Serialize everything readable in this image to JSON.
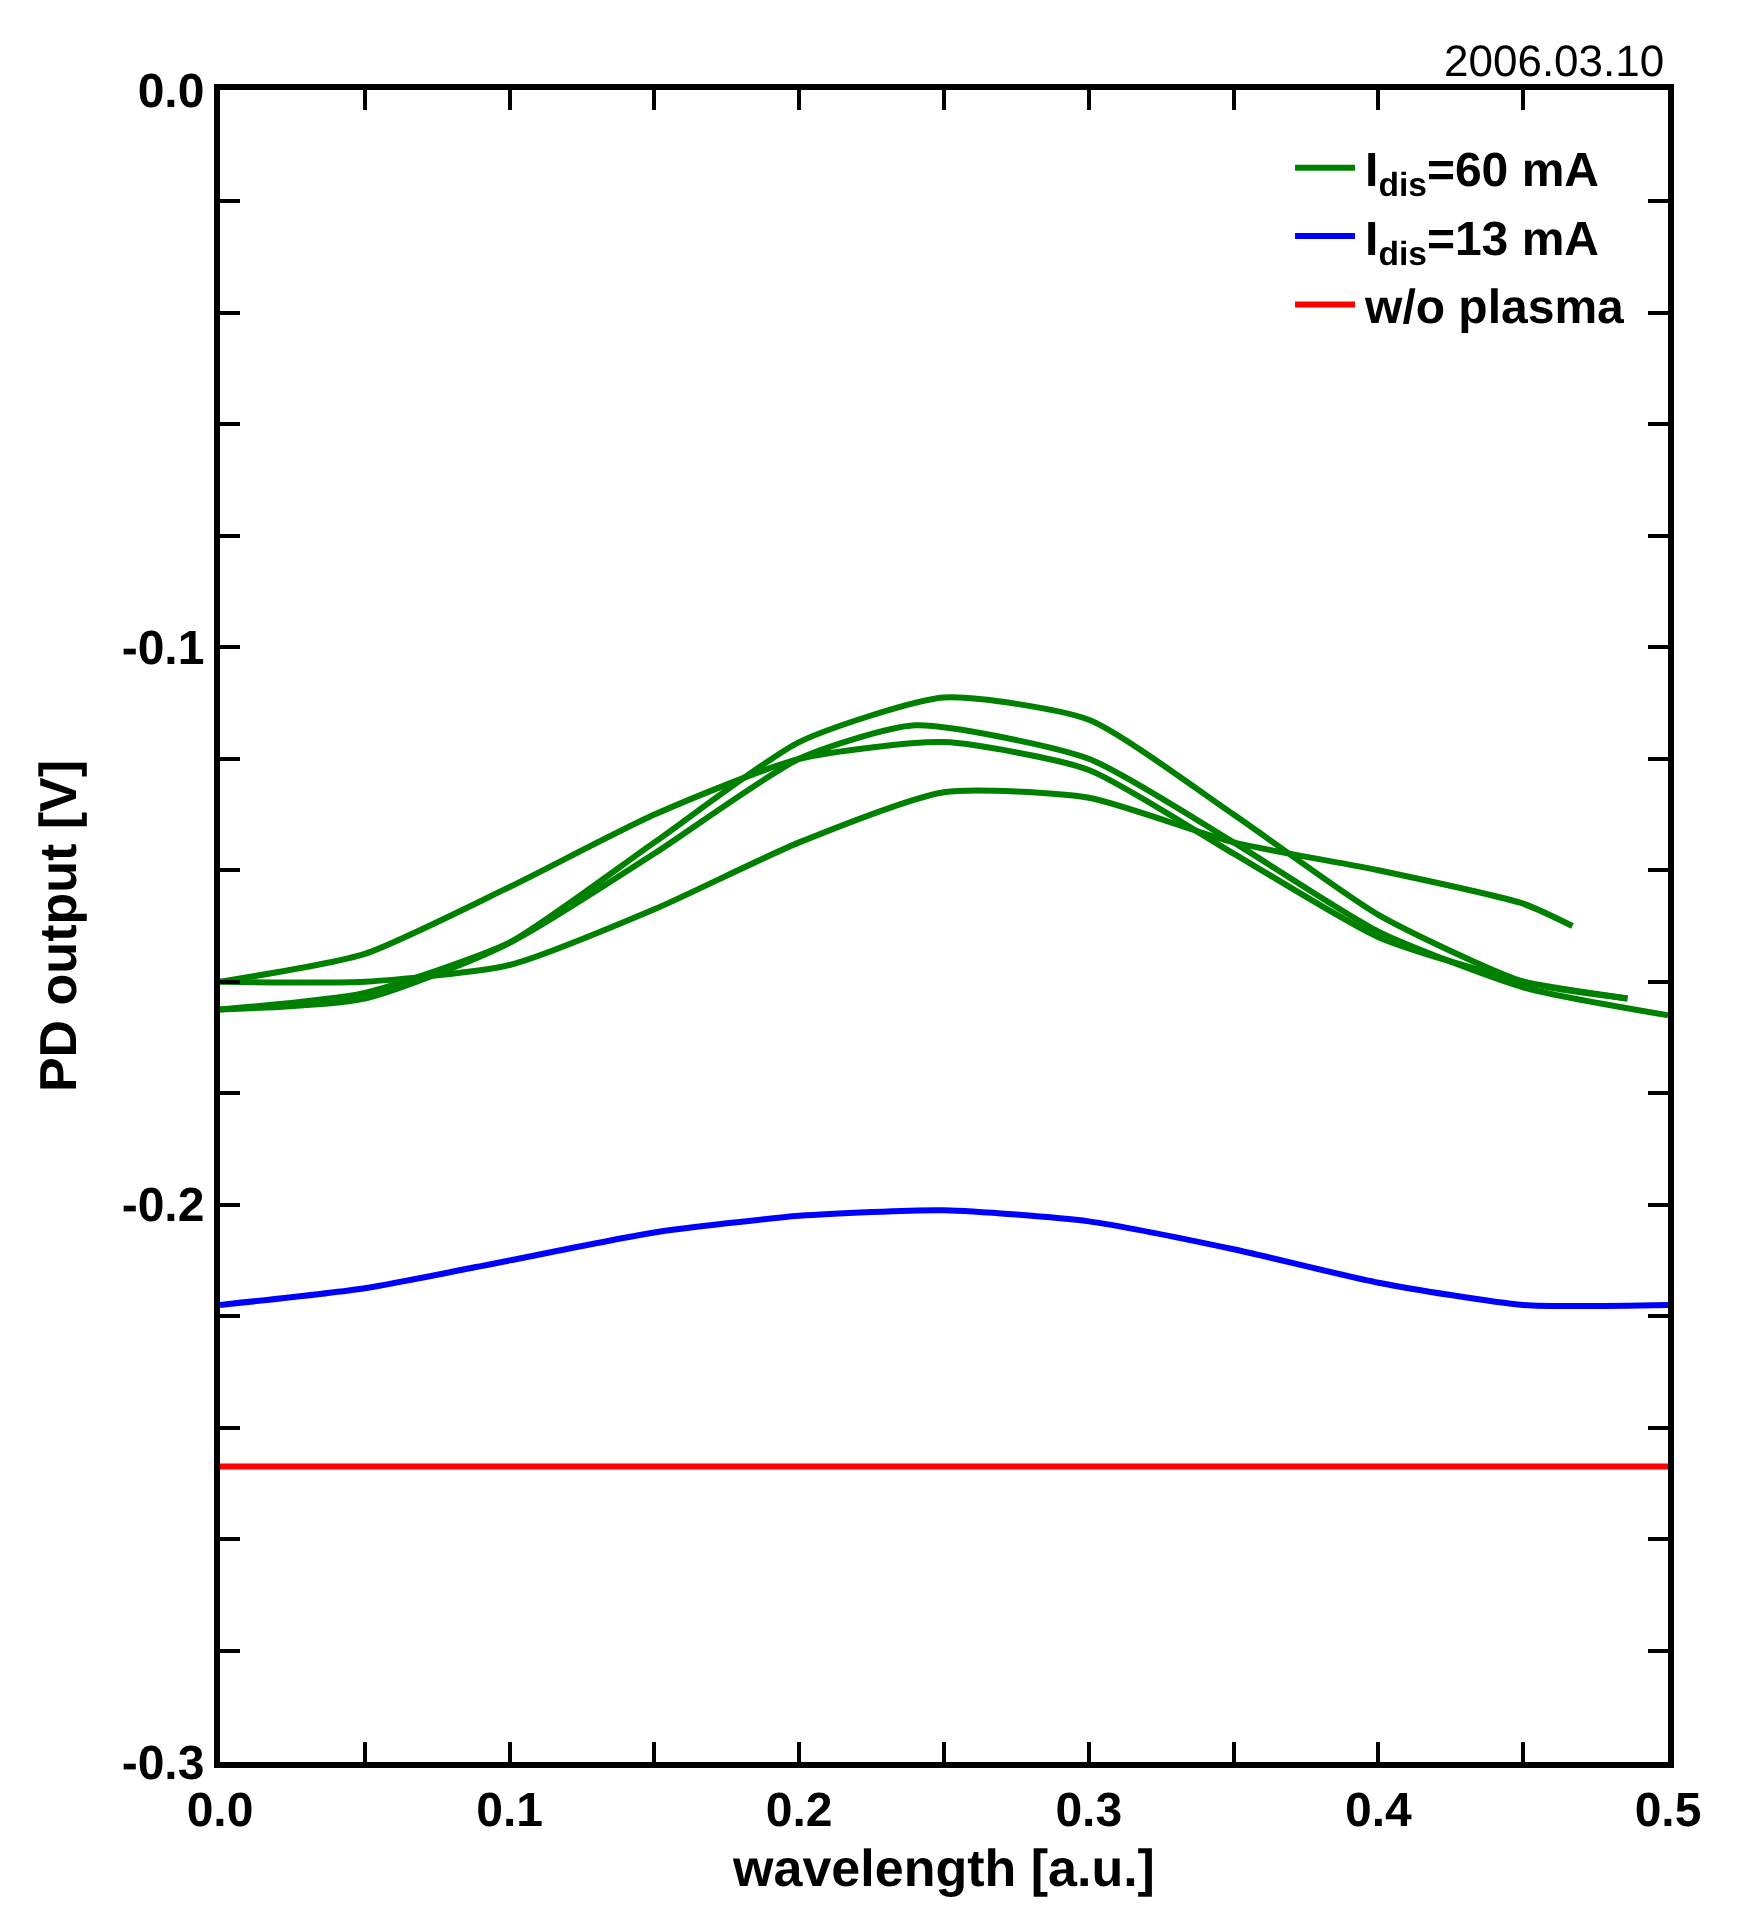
{
  "chart_data": {
    "type": "line",
    "xlabel": "wavelength [a.u.]",
    "ylabel": "PD output [V]",
    "xlim": [
      0,
      0.5
    ],
    "ylim": [
      -0.3,
      0
    ],
    "xticks": [
      {
        "value": 0,
        "label": "0.0"
      },
      {
        "value": 0.05,
        "label": null
      },
      {
        "value": 0.1,
        "label": "0.1"
      },
      {
        "value": 0.15,
        "label": null
      },
      {
        "value": 0.2,
        "label": "0.2"
      },
      {
        "value": 0.25,
        "label": null
      },
      {
        "value": 0.3,
        "label": "0.3"
      },
      {
        "value": 0.35,
        "label": null
      },
      {
        "value": 0.4,
        "label": "0.4"
      },
      {
        "value": 0.45,
        "label": null
      },
      {
        "value": 0.5,
        "label": "0.5"
      }
    ],
    "yticks": [
      {
        "value": 0,
        "label": "0.0"
      },
      {
        "value": -0.02,
        "label": null
      },
      {
        "value": -0.04,
        "label": null
      },
      {
        "value": -0.06,
        "label": null
      },
      {
        "value": -0.08,
        "label": null
      },
      {
        "value": -0.1,
        "label": "-0.1"
      },
      {
        "value": -0.12,
        "label": null
      },
      {
        "value": -0.14,
        "label": null
      },
      {
        "value": -0.16,
        "label": null
      },
      {
        "value": -0.18,
        "label": null
      },
      {
        "value": -0.2,
        "label": "-0.2"
      },
      {
        "value": -0.22,
        "label": null
      },
      {
        "value": -0.24,
        "label": null
      },
      {
        "value": -0.26,
        "label": null
      },
      {
        "value": -0.28,
        "label": null
      },
      {
        "value": -0.3,
        "label": "-0.3"
      }
    ],
    "legend": "top right",
    "marker": "none",
    "line_style": "solid",
    "annotations": [
      "2006.03.10"
    ],
    "series": [
      {
        "name": "I$_{dis}$=60 mA",
        "color": "#008000",
        "x": [
          0,
          0.05,
          0.1,
          0.15,
          0.2,
          0.25,
          0.3,
          0.35,
          0.4,
          0.45,
          0.486
        ],
        "values": [
          -0.16,
          -0.155,
          -0.143,
          -0.13,
          -0.12,
          -0.117,
          -0.122,
          -0.137,
          -0.152,
          -0.16,
          -0.163
        ]
      },
      {
        "color": "#008000",
        "x": [
          0,
          0.05,
          0.1,
          0.15,
          0.2,
          0.25,
          0.3,
          0.35,
          0.4,
          0.45,
          0.486
        ],
        "values": [
          -0.165,
          -0.163,
          -0.153,
          -0.135,
          -0.117,
          -0.109,
          -0.113,
          -0.13,
          -0.148,
          -0.16,
          -0.163
        ]
      },
      {
        "color": "#008000",
        "x": [
          0,
          0.05,
          0.1,
          0.15,
          0.2,
          0.24,
          0.3,
          0.35,
          0.4,
          0.45,
          0.5
        ],
        "values": [
          -0.165,
          -0.162,
          -0.153,
          -0.137,
          -0.12,
          -0.114,
          -0.12,
          -0.135,
          -0.151,
          -0.161,
          -0.166
        ]
      },
      {
        "color": "#008000",
        "x": [
          0,
          0.05,
          0.1,
          0.15,
          0.2,
          0.25,
          0.3,
          0.35,
          0.4,
          0.45,
          0.467
        ],
        "values": [
          -0.16,
          -0.16,
          -0.157,
          -0.147,
          -0.135,
          -0.126,
          -0.127,
          -0.135,
          -0.14,
          -0.146,
          -0.15
        ]
      },
      {
        "name": "I$_{dis}$=13 mA",
        "color": "#0000ff",
        "x": [
          0,
          0.05,
          0.1,
          0.15,
          0.2,
          0.25,
          0.3,
          0.35,
          0.4,
          0.45,
          0.5
        ],
        "values": [
          -0.218,
          -0.215,
          -0.21,
          -0.205,
          -0.202,
          -0.201,
          -0.203,
          -0.208,
          -0.214,
          -0.218,
          -0.218
        ]
      },
      {
        "name": "w/o plasma",
        "color": "#ff0000",
        "x": [
          0,
          0.1,
          0.2,
          0.3,
          0.4,
          0.5
        ],
        "values": [
          -0.247,
          -0.247,
          -0.247,
          -0.247,
          -0.247,
          -0.247
        ]
      }
    ]
  }
}
